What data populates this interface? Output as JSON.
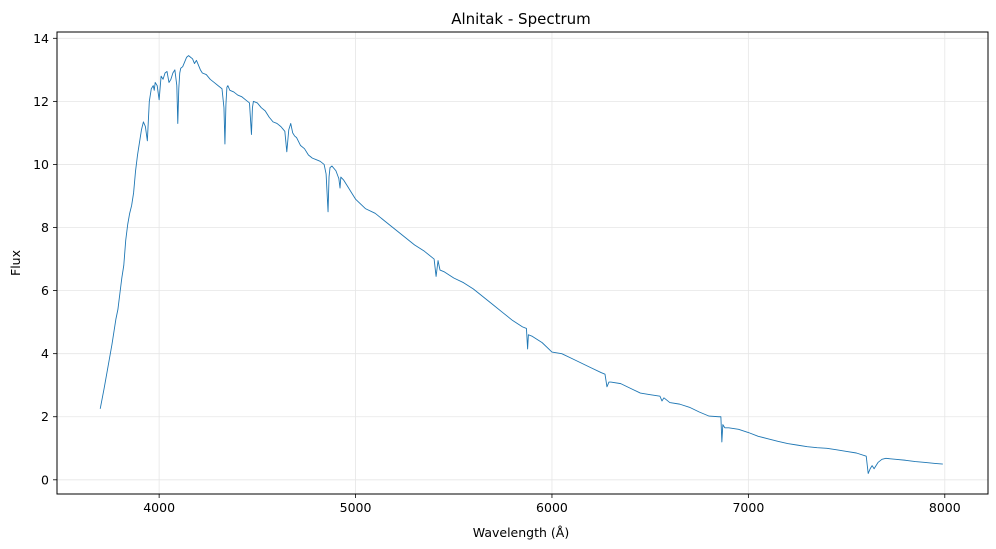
{
  "chart_data": {
    "type": "line",
    "title": "Alnitak - Spectrum",
    "xlabel": "Wavelength (Å)",
    "ylabel": "Flux",
    "xlim": [
      3480,
      8220
    ],
    "ylim": [
      -0.45,
      14.2
    ],
    "xticks": [
      4000,
      5000,
      6000,
      7000,
      8000
    ],
    "yticks": [
      0,
      2,
      4,
      6,
      8,
      10,
      12,
      14
    ],
    "grid": true,
    "line_color": "#1f77b4",
    "series": [
      {
        "name": "Alnitak",
        "x": [
          3700,
          3720,
          3740,
          3760,
          3780,
          3790,
          3800,
          3810,
          3820,
          3830,
          3840,
          3850,
          3860,
          3870,
          3880,
          3890,
          3900,
          3910,
          3920,
          3930,
          3940,
          3950,
          3960,
          3970,
          3975,
          3980,
          3990,
          4000,
          4010,
          4020,
          4030,
          4040,
          4050,
          4060,
          4070,
          4080,
          4090,
          4095,
          4100,
          4105,
          4110,
          4120,
          4130,
          4140,
          4150,
          4160,
          4170,
          4180,
          4190,
          4200,
          4210,
          4220,
          4240,
          4260,
          4280,
          4300,
          4320,
          4330,
          4335,
          4340,
          4345,
          4350,
          4360,
          4380,
          4400,
          4420,
          4440,
          4460,
          4470,
          4475,
          4480,
          4500,
          4520,
          4540,
          4560,
          4580,
          4600,
          4620,
          4640,
          4650,
          4660,
          4670,
          4680,
          4690,
          4700,
          4720,
          4740,
          4760,
          4780,
          4800,
          4820,
          4840,
          4850,
          4860,
          4865,
          4870,
          4880,
          4900,
          4915,
          4921,
          4925,
          4940,
          4960,
          4980,
          5000,
          5050,
          5100,
          5150,
          5200,
          5250,
          5300,
          5350,
          5400,
          5410,
          5420,
          5430,
          5450,
          5500,
          5550,
          5600,
          5650,
          5700,
          5750,
          5800,
          5850,
          5870,
          5876,
          5880,
          5900,
          5950,
          6000,
          6050,
          6100,
          6150,
          6200,
          6250,
          6270,
          6280,
          6290,
          6300,
          6350,
          6400,
          6450,
          6500,
          6550,
          6560,
          6570,
          6600,
          6650,
          6700,
          6750,
          6800,
          6850,
          6860,
          6865,
          6870,
          6880,
          6900,
          6950,
          7000,
          7050,
          7100,
          7150,
          7200,
          7250,
          7300,
          7350,
          7400,
          7450,
          7500,
          7550,
          7600,
          7610,
          7620,
          7630,
          7640,
          7650,
          7660,
          7680,
          7700,
          7750,
          7800,
          7850,
          7900,
          7950,
          7990
        ],
        "y": [
          2.25,
          2.9,
          3.6,
          4.3,
          5.1,
          5.4,
          5.9,
          6.4,
          6.8,
          7.6,
          8.1,
          8.45,
          8.7,
          9.1,
          9.8,
          10.3,
          10.7,
          11.1,
          11.35,
          11.2,
          10.75,
          12.0,
          12.4,
          12.5,
          12.35,
          12.6,
          12.5,
          12.05,
          12.8,
          12.7,
          12.9,
          12.95,
          12.6,
          12.7,
          12.9,
          13.0,
          12.5,
          11.3,
          12.4,
          12.9,
          13.05,
          13.1,
          13.25,
          13.4,
          13.45,
          13.4,
          13.35,
          13.2,
          13.3,
          13.15,
          13.0,
          12.9,
          12.85,
          12.7,
          12.6,
          12.5,
          12.4,
          11.8,
          10.65,
          11.9,
          12.45,
          12.5,
          12.35,
          12.3,
          12.2,
          12.15,
          12.05,
          11.95,
          10.95,
          11.8,
          12.0,
          11.95,
          11.8,
          11.7,
          11.5,
          11.35,
          11.3,
          11.2,
          11.05,
          10.4,
          11.1,
          11.3,
          11.0,
          10.9,
          10.85,
          10.6,
          10.5,
          10.3,
          10.2,
          10.15,
          10.1,
          10.0,
          9.7,
          8.5,
          9.6,
          9.9,
          9.95,
          9.8,
          9.55,
          9.25,
          9.6,
          9.5,
          9.3,
          9.1,
          8.9,
          8.6,
          8.45,
          8.2,
          7.95,
          7.7,
          7.45,
          7.25,
          7.0,
          6.45,
          6.95,
          6.65,
          6.6,
          6.4,
          6.25,
          6.05,
          5.8,
          5.55,
          5.3,
          5.05,
          4.85,
          4.8,
          4.15,
          4.6,
          4.55,
          4.35,
          4.05,
          4.0,
          3.85,
          3.7,
          3.55,
          3.4,
          3.35,
          2.95,
          3.1,
          3.1,
          3.05,
          2.9,
          2.75,
          2.7,
          2.65,
          2.5,
          2.6,
          2.45,
          2.4,
          2.3,
          2.15,
          2.02,
          2.0,
          2.0,
          1.2,
          1.75,
          1.65,
          1.65,
          1.6,
          1.5,
          1.38,
          1.3,
          1.22,
          1.15,
          1.1,
          1.05,
          1.02,
          1.0,
          0.95,
          0.9,
          0.85,
          0.75,
          0.2,
          0.35,
          0.45,
          0.35,
          0.45,
          0.55,
          0.65,
          0.68,
          0.65,
          0.62,
          0.58,
          0.55,
          0.52,
          0.5
        ]
      }
    ]
  }
}
